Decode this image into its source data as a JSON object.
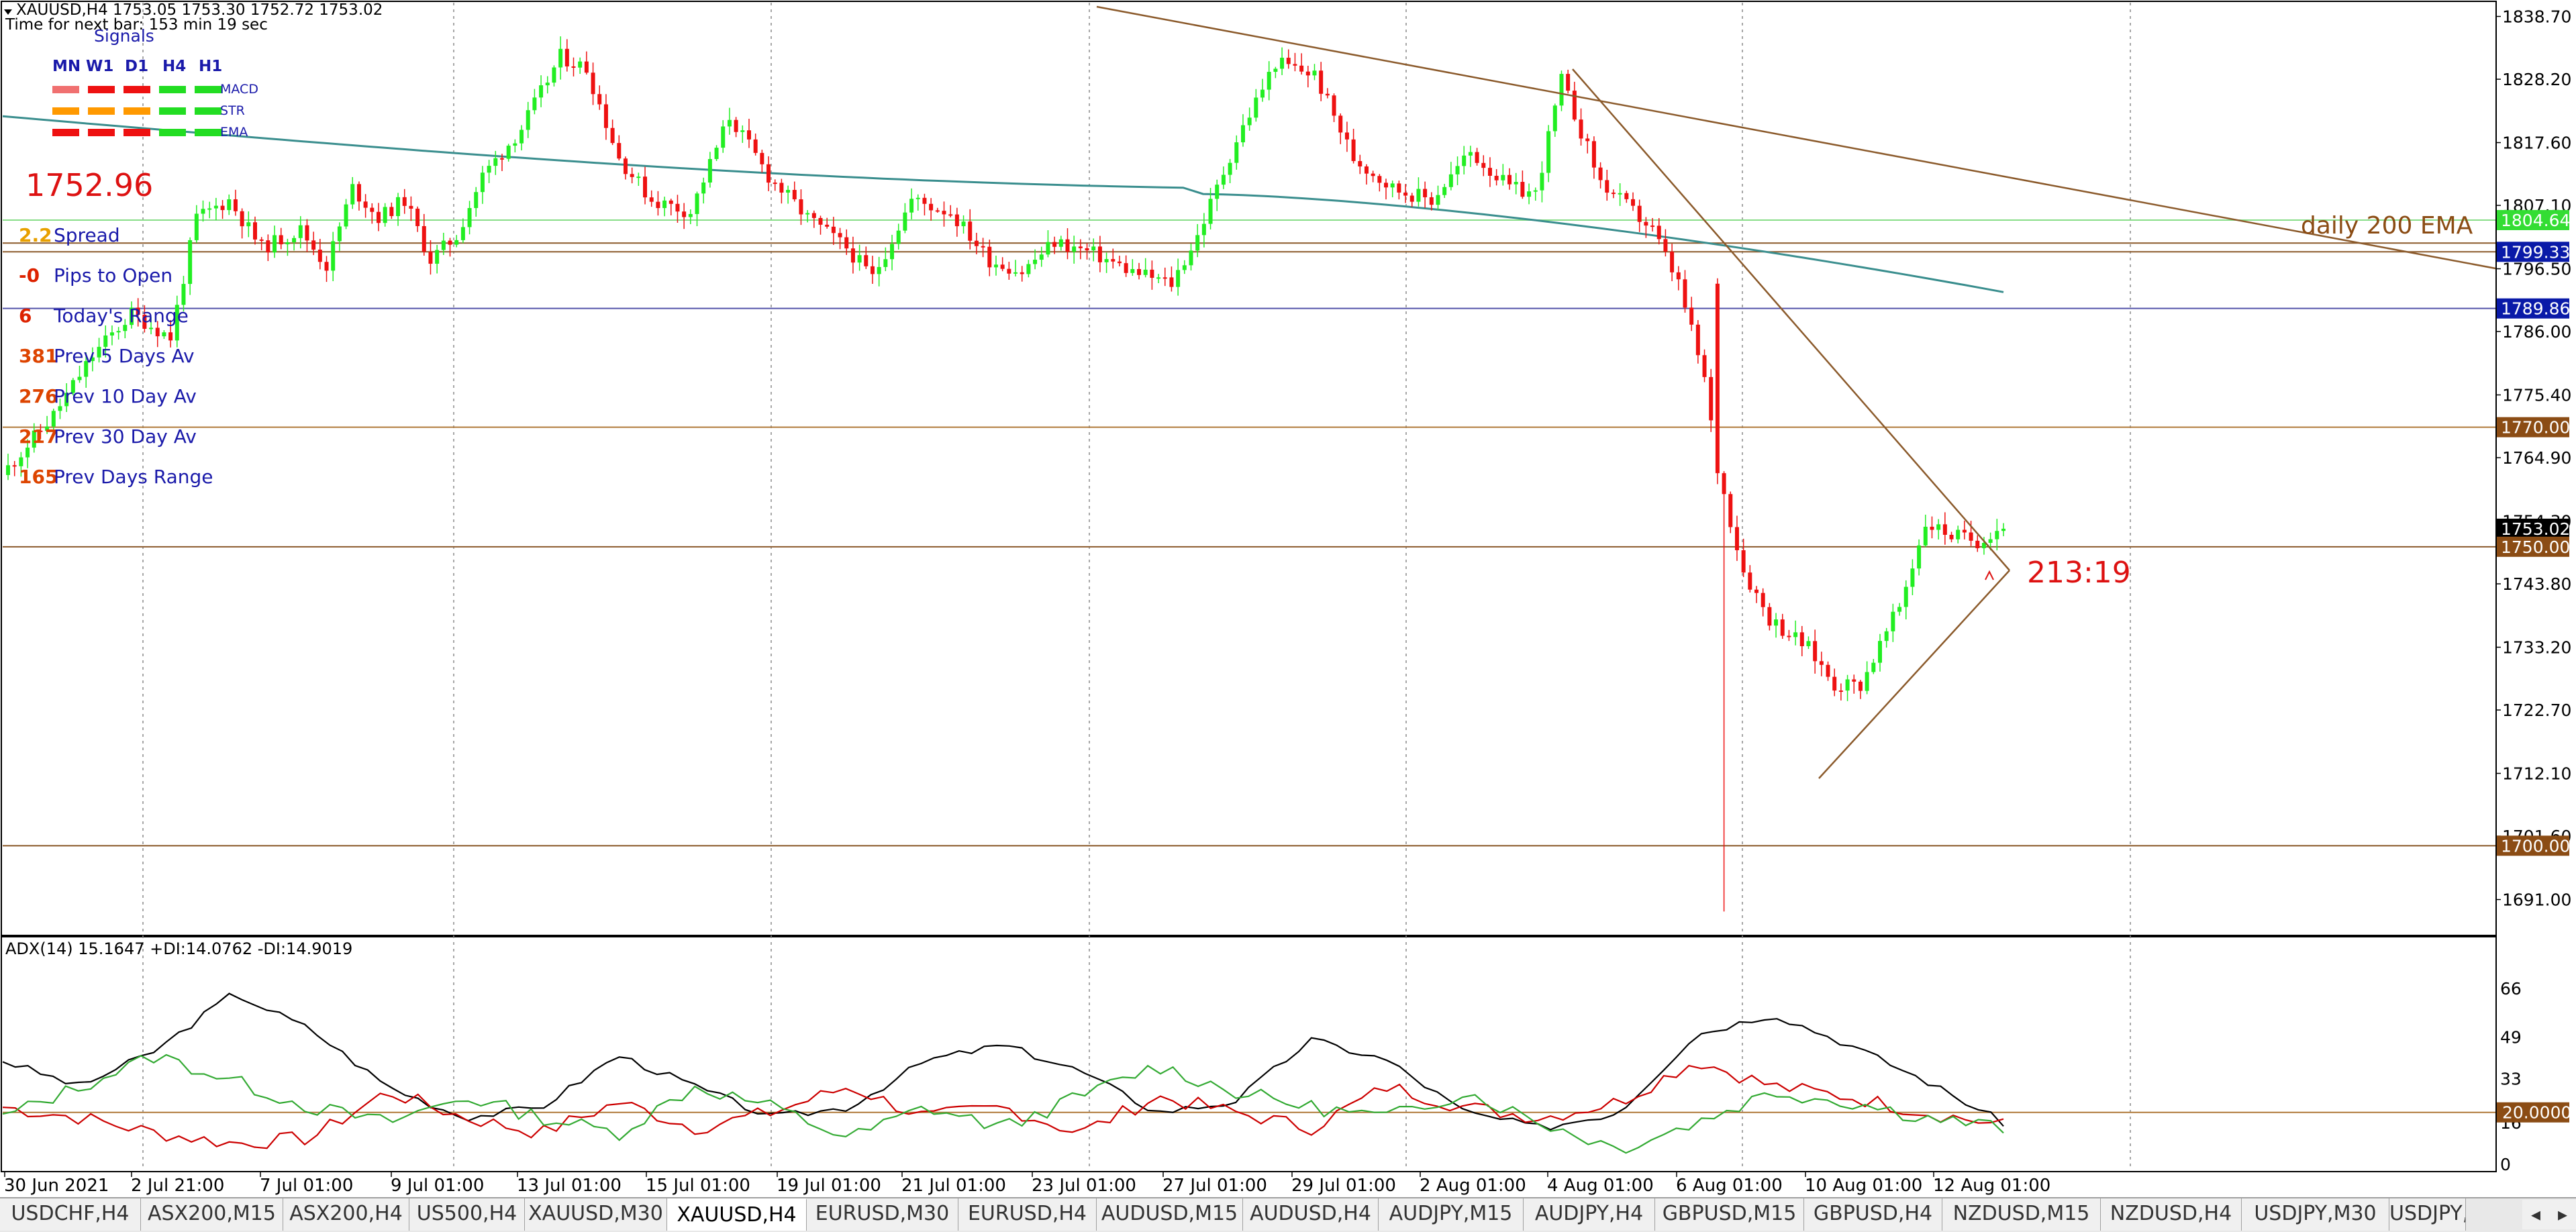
{
  "chart_header": {
    "title": "XAUUSD,H4  1753.05 1753.30 1752.72 1753.02",
    "timer": "Time for next bar: 153 min 19 sec"
  },
  "signals": {
    "title": "Signals",
    "timeframes": [
      "MN",
      "W1",
      "D1",
      "H4",
      "H1"
    ],
    "rows": [
      {
        "label": "MACD",
        "colors": [
          "#f07070",
          "#ee1111",
          "#ee1111",
          "#22dd22",
          "#22dd22"
        ]
      },
      {
        "label": "STR",
        "colors": [
          "#ff9900",
          "#ff9900",
          "#ff9900",
          "#22dd22",
          "#22dd22"
        ]
      },
      {
        "label": "EMA",
        "colors": [
          "#ee1111",
          "#ee1111",
          "#ee1111",
          "#22dd22",
          "#22dd22"
        ]
      }
    ]
  },
  "info_panel": {
    "price": "1752.96",
    "rows": [
      {
        "value": "2.2",
        "label": "Spread",
        "value_color": "#e8a000"
      },
      {
        "value": "-0",
        "label": "Pips to Open",
        "value_color": "#dd2200"
      },
      {
        "value": "6",
        "label": "Today's Range",
        "value_color": "#dd2200"
      },
      {
        "value": "381",
        "label": "Prev 5 Days Av",
        "value_color": "#dd4400"
      },
      {
        "value": "276",
        "label": "Prev 10 Day Av",
        "value_color": "#dd4400"
      },
      {
        "value": "217",
        "label": "Prev 30 Day Av",
        "value_color": "#dd4400"
      },
      {
        "value": "165",
        "label": "Prev Days Range",
        "value_color": "#dd4400"
      }
    ]
  },
  "annotations": {
    "ema_label": "daily 200 EMA",
    "ratio_label": "213:19"
  },
  "indicator": {
    "header": "ADX(14) 15.1647 +DI:14.0762 -DI:14.9019",
    "axis_ticks": [
      "66",
      "49",
      "33",
      "16",
      "0"
    ],
    "level_label": "20.0000"
  },
  "colors": {
    "bull_candle": "#22ee22",
    "bear_candle": "#ee1111",
    "ema_line": "#3a8e8e",
    "trendline": "#8b5a2b",
    "level_line": "#b07a3a",
    "adx_line": "#000000",
    "plus_di": "#cc0000",
    "minus_di": "#33aa33"
  },
  "chart_data": {
    "type": "candlestick",
    "symbol": "XAUUSD",
    "timeframe": "H4",
    "ylim": [
      1685,
      1841
    ],
    "price_axis_ticks": [
      "1838.70",
      "1828.20",
      "1817.60",
      "1807.10",
      "1796.50",
      "1786.00",
      "1775.40",
      "1764.90",
      "1754.30",
      "1743.80",
      "1733.20",
      "1722.70",
      "1712.10",
      "1701.60",
      "1691.00"
    ],
    "time_labels": [
      "30 Jun 2021",
      "2 Jul 21:00",
      "7 Jul 01:00",
      "9 Jul 01:00",
      "13 Jul 01:00",
      "15 Jul 01:00",
      "19 Jul 01:00",
      "21 Jul 01:00",
      "23 Jul 01:00",
      "27 Jul 01:00",
      "29 Jul 01:00",
      "2 Aug 01:00",
      "4 Aug 01:00",
      "6 Aug 01:00",
      "10 Aug 01:00",
      "12 Aug 01:00"
    ],
    "price_labels": [
      {
        "text": "1804.64",
        "value": 1804.64,
        "style": "green"
      },
      {
        "text": "1799.33",
        "value": 1799.33,
        "style": "blue"
      },
      {
        "text": "1789.86",
        "value": 1789.86,
        "style": "blue"
      },
      {
        "text": "1770.00",
        "value": 1770.0,
        "style": "brown"
      },
      {
        "text": "1753.02",
        "value": 1753.02,
        "style": "black"
      },
      {
        "text": "1750.00",
        "value": 1750.0,
        "style": "brown"
      },
      {
        "text": "1700.00",
        "value": 1700.0,
        "style": "brown"
      }
    ],
    "horizontal_levels": [
      {
        "value": 1804.64,
        "color": "#88dd88"
      },
      {
        "value": 1800.8,
        "color": "#8b5a2b"
      },
      {
        "value": 1799.33,
        "color": "#8b5a2b"
      },
      {
        "value": 1789.86,
        "color": "#5555aa"
      },
      {
        "value": 1770.0,
        "color": "#b07a3a"
      },
      {
        "value": 1750.0,
        "color": "#8b5a2b"
      },
      {
        "value": 1700.0,
        "color": "#8b5a2b"
      }
    ],
    "ema200_start": 1822,
    "ema200_end": 1792.6
  }
}
